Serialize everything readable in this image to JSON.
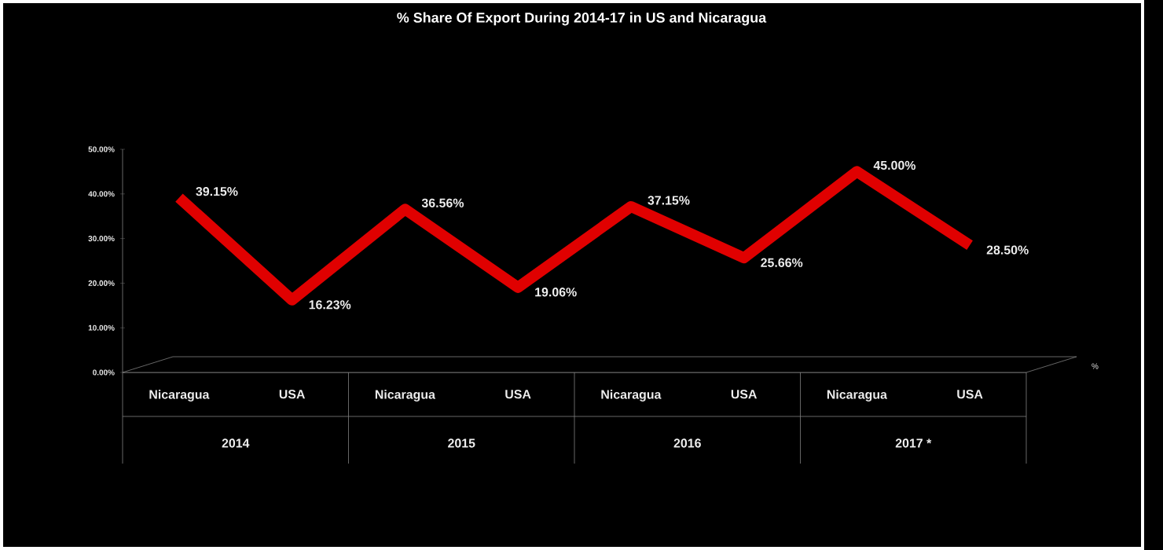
{
  "chart_data": {
    "type": "line",
    "title": "% Share Of Export During 2014-17 in US and Nicaragua",
    "xlabel": "%",
    "categories": [
      "Nicaragua",
      "USA",
      "Nicaragua",
      "USA",
      "Nicaragua",
      "USA",
      "Nicaragua",
      "USA"
    ],
    "series": [
      {
        "color": "#e00000",
        "values": [
          39.15,
          16.23,
          36.56,
          19.06,
          37.15,
          25.66,
          45.0,
          28.5
        ],
        "value_labels": [
          "39.15%",
          "16.23%",
          "36.56%",
          "19.06%",
          "37.15%",
          "25.66%",
          "45.00%",
          "28.50%"
        ]
      }
    ],
    "annotations": [
      "2014",
      "2015",
      "2016",
      "2017 *"
    ],
    "ylim": [
      0,
      50
    ],
    "yticks": [
      {
        "value": 0,
        "label": "0.00%"
      },
      {
        "value": 10,
        "label": "10.00%"
      },
      {
        "value": 20,
        "label": "20.00%"
      },
      {
        "value": 30,
        "label": "30.00%"
      },
      {
        "value": 40,
        "label": "40.00%"
      },
      {
        "value": 50,
        "label": "50.00%"
      }
    ],
    "grid": false,
    "legend": false,
    "marker": "none",
    "line_style": "solid"
  }
}
